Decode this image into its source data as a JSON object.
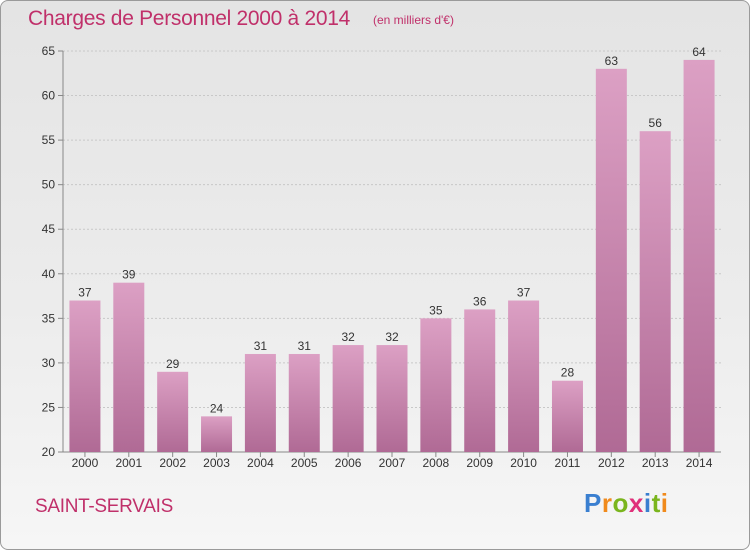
{
  "title": "Charges de Personnel 2000 à 2014",
  "subtitle": "(en milliers d'€)",
  "place": "SAINT-SERVAIS",
  "logo": {
    "letters": [
      "P",
      "r",
      "o",
      "x",
      "i",
      "t",
      "i"
    ],
    "colors": [
      "#3a7fd0",
      "#f08a1c",
      "#7ab51d",
      "#e0307a",
      "#3a7fd0",
      "#7ab51d",
      "#f08a1c"
    ]
  },
  "colors": {
    "bar": "#dca0c4",
    "bar_dark": "#b06a95",
    "text": "#c0306a",
    "axis": "#888888"
  },
  "chart_data": {
    "type": "bar",
    "categories": [
      "2000",
      "2001",
      "2002",
      "2003",
      "2004",
      "2005",
      "2006",
      "2007",
      "2008",
      "2009",
      "2010",
      "2011",
      "2012",
      "2013",
      "2014"
    ],
    "values": [
      37,
      39,
      29,
      24,
      31,
      31,
      32,
      32,
      35,
      36,
      37,
      28,
      63,
      56,
      64
    ],
    "ylim": [
      20,
      65
    ],
    "yticks": [
      20,
      25,
      30,
      35,
      40,
      45,
      50,
      55,
      60,
      65
    ],
    "grid": true
  }
}
